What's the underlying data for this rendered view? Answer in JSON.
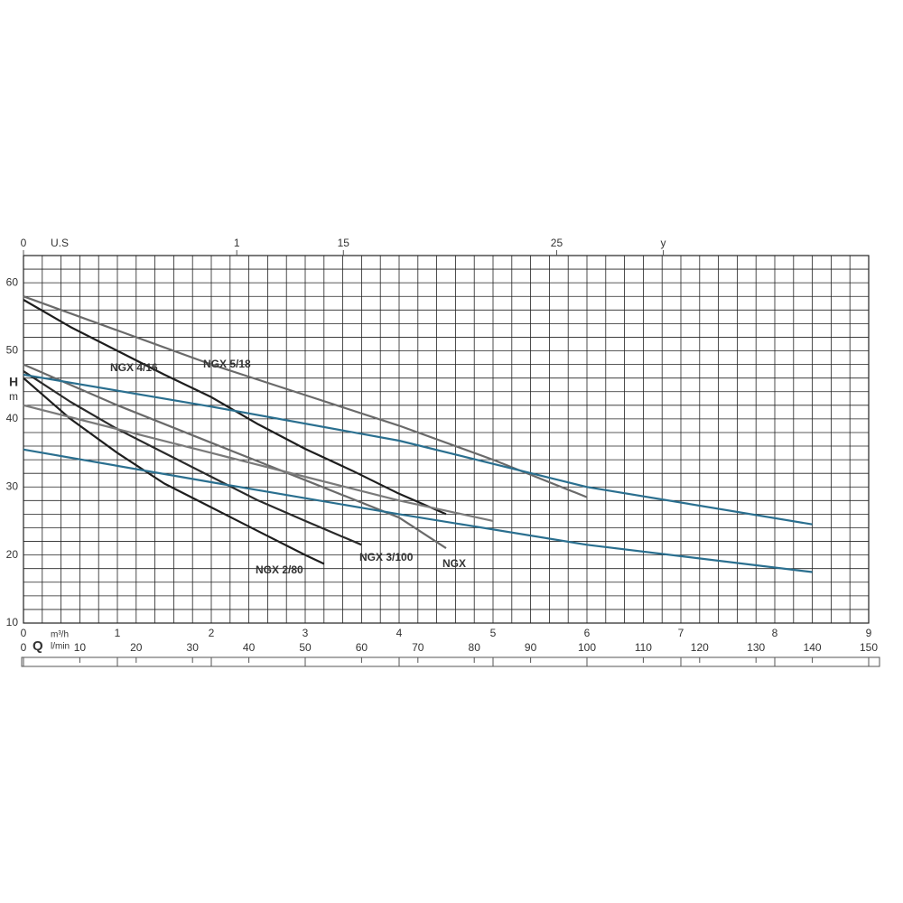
{
  "chart_data": {
    "type": "line",
    "y_label": "H",
    "y_unit": "m",
    "x_label": "Q",
    "x_unit": "m³/h",
    "x2_label": "U.S",
    "x3_unit": "l/min",
    "xlim": [
      0,
      9
    ],
    "xticks": [
      0,
      1,
      2,
      3,
      4,
      5,
      6,
      7,
      8,
      9
    ],
    "ylim": [
      10,
      64
    ],
    "yticks": [
      10,
      20,
      30,
      40,
      50,
      60
    ],
    "x2lim": [
      0,
      39.63
    ],
    "x2ticks": [
      0,
      {
        "value": 10,
        "label": "1"
      },
      15,
      25,
      {
        "value": 30,
        "label": "y"
      }
    ],
    "x3lim": [
      0,
      150
    ],
    "x3ticks": [
      0,
      10,
      20,
      30,
      40,
      50,
      60,
      70,
      80,
      90,
      100,
      110,
      120,
      130,
      140,
      150
    ],
    "grid": true,
    "xgrid": [
      0,
      0.2,
      0.4,
      0.6,
      0.8,
      1,
      1.2,
      1.4,
      1.6,
      1.8,
      2,
      2.2,
      2.4,
      2.6,
      2.8,
      3,
      3.2,
      3.4,
      3.6,
      3.8,
      4,
      4.2,
      4.4,
      4.6,
      4.8,
      5,
      5.2,
      5.4,
      5.6,
      5.8,
      6,
      6.2,
      6.4,
      6.6,
      6.8,
      7,
      7.2,
      7.4,
      7.6,
      7.8,
      8,
      8.2,
      8.4,
      8.6,
      8.8,
      9
    ],
    "ygrid": [
      10,
      12,
      14,
      16,
      18,
      20,
      22,
      24,
      26,
      28,
      30,
      32,
      34,
      36,
      38,
      40,
      42,
      44,
      46,
      48,
      50,
      52,
      54,
      56,
      58,
      60,
      62,
      64
    ],
    "series": [
      {
        "name": "NGX 2/80",
        "color": "#1e1e1e",
        "x": [
          0,
          0.5,
          1,
          1.5,
          2,
          2.5,
          3,
          3.2
        ],
        "values": [
          46,
          40,
          35,
          30.5,
          27,
          23.5,
          20,
          18.7
        ]
      },
      {
        "name": "NGX 4/16",
        "color": "#1e1e1e",
        "x": [
          0,
          0.5,
          1,
          1.5,
          2,
          2.5,
          3,
          3.5,
          4,
          4.5
        ],
        "values": [
          57.5,
          53.5,
          50,
          46.5,
          43.2,
          39.2,
          35.6,
          32.4,
          29,
          26
        ]
      },
      {
        "name": "NGX 5/18",
        "color": "#6a6a6a",
        "x": [
          0,
          1,
          2,
          3,
          4,
          5,
          6
        ],
        "values": [
          58,
          53,
          48,
          43.5,
          39,
          34,
          28.5
        ]
      },
      {
        "name": "NGX 3/100",
        "color": "#2a2a2a",
        "x": [
          0,
          0.5,
          1,
          1.5,
          2,
          2.5,
          3,
          3.6
        ],
        "values": [
          47,
          42.5,
          38.5,
          35,
          31.5,
          28,
          25,
          21.5
        ]
      },
      {
        "name": "NGX",
        "color": "#6a6a6a",
        "x": [
          0,
          1,
          2,
          3,
          4,
          4.5
        ],
        "values": [
          48,
          42,
          36.5,
          31,
          25.5,
          21
        ]
      },
      {
        "color": "#7a7a7a",
        "x": [
          0,
          1,
          2,
          3,
          4,
          5
        ],
        "values": [
          42,
          38.5,
          35,
          31.5,
          28,
          25
        ]
      },
      {
        "color": "#2a6f8f",
        "x": [
          0,
          2,
          4,
          6,
          8.4
        ],
        "values": [
          46.5,
          41.8,
          36.8,
          30,
          24.5
        ]
      },
      {
        "color": "#2a6f8f",
        "x": [
          0,
          2,
          4,
          6,
          8.4
        ],
        "values": [
          35.5,
          30.7,
          26,
          21.5,
          17.5
        ]
      }
    ]
  }
}
